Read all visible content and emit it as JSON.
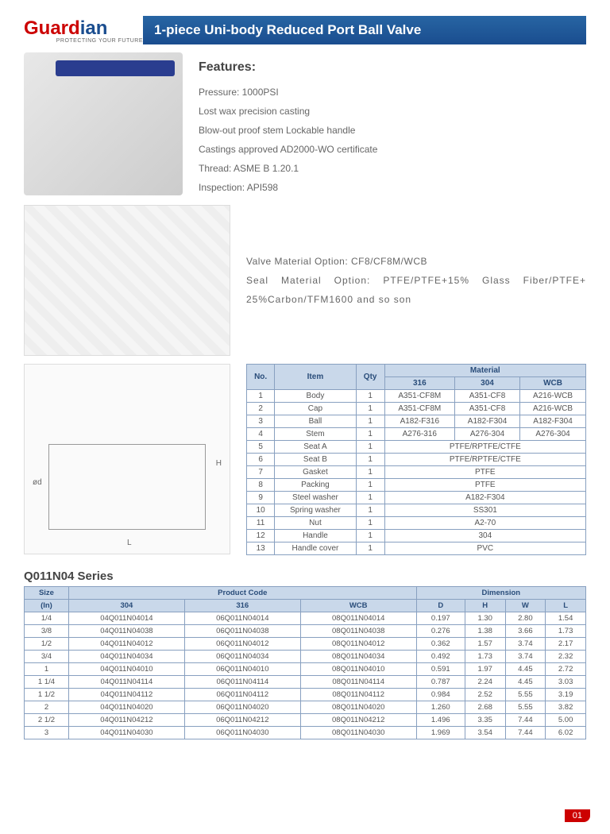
{
  "logo": {
    "part1": "Guard",
    "part2": "ian",
    "tagline": "PROTECTING YOUR FUTURE"
  },
  "title": "1-piece Uni-body Reduced Port Ball Valve",
  "features": {
    "heading": "Features:",
    "items": [
      "Pressure: 1000PSI",
      "Lost wax precision casting",
      "Blow-out proof stem Lockable handle",
      "Castings approved AD2000-WO certificate",
      "Thread: ASME B 1.20.1",
      "Inspection: API598"
    ]
  },
  "options": {
    "valve": "Valve Material Option: CF8/CF8M/WCB",
    "seal": "Seal Material Option: PTFE/PTFE+15% Glass Fiber/PTFE+ 25%Carbon/TFM1600 and so son"
  },
  "materials": {
    "headers": {
      "no": "No.",
      "item": "Item",
      "qty": "Qty",
      "material": "Material",
      "m316": "316",
      "m304": "304",
      "wcb": "WCB"
    },
    "rows": [
      {
        "no": "1",
        "item": "Body",
        "qty": "1",
        "m316": "A351-CF8M",
        "m304": "A351-CF8",
        "wcb": "A216-WCB"
      },
      {
        "no": "2",
        "item": "Cap",
        "qty": "1",
        "m316": "A351-CF8M",
        "m304": "A351-CF8",
        "wcb": "A216-WCB"
      },
      {
        "no": "3",
        "item": "Ball",
        "qty": "1",
        "m316": "A182-F316",
        "m304": "A182-F304",
        "wcb": "A182-F304"
      },
      {
        "no": "4",
        "item": "Stem",
        "qty": "1",
        "m316": "A276-316",
        "m304": "A276-304",
        "wcb": "A276-304"
      },
      {
        "no": "5",
        "item": "Seat A",
        "qty": "1",
        "merged": "PTFE/RPTFE/CTFE"
      },
      {
        "no": "6",
        "item": "Seat B",
        "qty": "1",
        "merged": "PTFE/RPTFE/CTFE"
      },
      {
        "no": "7",
        "item": "Gasket",
        "qty": "1",
        "merged": "PTFE"
      },
      {
        "no": "8",
        "item": "Packing",
        "qty": "1",
        "merged": "PTFE"
      },
      {
        "no": "9",
        "item": "Steel washer",
        "qty": "1",
        "merged": "A182-F304"
      },
      {
        "no": "10",
        "item": "Spring washer",
        "qty": "1",
        "merged": "SS301"
      },
      {
        "no": "11",
        "item": "Nut",
        "qty": "1",
        "merged": "A2-70"
      },
      {
        "no": "12",
        "item": "Handle",
        "qty": "1",
        "merged": "304"
      },
      {
        "no": "13",
        "item": "Handle cover",
        "qty": "1",
        "merged": "PVC"
      }
    ]
  },
  "series": {
    "title": "Q011N04 Series",
    "headers": {
      "size": "Size",
      "in": "(In)",
      "pc": "Product Code",
      "p304": "304",
      "p316": "316",
      "wcb": "WCB",
      "dim": "Dimension",
      "d": "D",
      "h": "H",
      "w": "W",
      "l": "L"
    },
    "rows": [
      {
        "size": "1/4",
        "p304": "04Q011N04014",
        "p316": "06Q011N04014",
        "wcb": "08Q011N04014",
        "d": "0.197",
        "h": "1.30",
        "w": "2.80",
        "l": "1.54"
      },
      {
        "size": "3/8",
        "p304": "04Q011N04038",
        "p316": "06Q011N04038",
        "wcb": "08Q011N04038",
        "d": "0.276",
        "h": "1.38",
        "w": "3.66",
        "l": "1.73"
      },
      {
        "size": "1/2",
        "p304": "04Q011N04012",
        "p316": "06Q011N04012",
        "wcb": "08Q011N04012",
        "d": "0.362",
        "h": "1.57",
        "w": "3.74",
        "l": "2.17"
      },
      {
        "size": "3/4",
        "p304": "04Q011N04034",
        "p316": "06Q011N04034",
        "wcb": "08Q011N04034",
        "d": "0.492",
        "h": "1.73",
        "w": "3.74",
        "l": "2.32"
      },
      {
        "size": "1",
        "p304": "04Q011N04010",
        "p316": "06Q011N04010",
        "wcb": "08Q011N04010",
        "d": "0.591",
        "h": "1.97",
        "w": "4.45",
        "l": "2.72"
      },
      {
        "size": "1 1/4",
        "p304": "04Q011N04114",
        "p316": "06Q011N04114",
        "wcb": "08Q011N04114",
        "d": "0.787",
        "h": "2.24",
        "w": "4.45",
        "l": "3.03"
      },
      {
        "size": "1 1/2",
        "p304": "04Q011N04112",
        "p316": "06Q011N04112",
        "wcb": "08Q011N04112",
        "d": "0.984",
        "h": "2.52",
        "w": "5.55",
        "l": "3.19"
      },
      {
        "size": "2",
        "p304": "04Q011N04020",
        "p316": "06Q011N04020",
        "wcb": "08Q011N04020",
        "d": "1.260",
        "h": "2.68",
        "w": "5.55",
        "l": "3.82"
      },
      {
        "size": "2 1/2",
        "p304": "04Q011N04212",
        "p316": "06Q011N04212",
        "wcb": "08Q011N04212",
        "d": "1.496",
        "h": "3.35",
        "w": "7.44",
        "l": "5.00"
      },
      {
        "size": "3",
        "p304": "04Q011N04030",
        "p316": "06Q011N04030",
        "wcb": "08Q011N04030",
        "d": "1.969",
        "h": "3.54",
        "w": "7.44",
        "l": "6.02"
      }
    ]
  },
  "drawing": {
    "l": "L",
    "h": "H",
    "phi_d": "ød",
    "phi_d2": "ød"
  },
  "pageNum": "01"
}
